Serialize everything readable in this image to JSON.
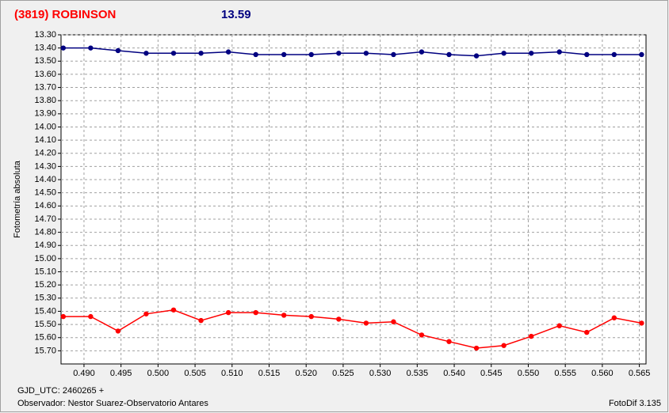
{
  "chart_data": {
    "type": "line",
    "title": "(3819) ROBINSON",
    "subtitle": "13.59",
    "y_label": "Fotometría absoluta",
    "footer_left": "GJD_UTC: 2460265 +",
    "observer": "Observador: Nestor Suarez-Observatorio Antares",
    "software": "FotoDif 3.135",
    "title_color": "#ff0000",
    "subtitle_color": "#000080",
    "grid": true,
    "y_inverted": true,
    "xlim": [
      0.4869,
      0.5659
    ],
    "ylim": [
      13.3,
      15.8
    ],
    "xticks": [
      {
        "value": 0.49,
        "label": "0.490"
      },
      0.495,
      {
        "value": 0.5,
        "label": "0.500"
      },
      0.505,
      {
        "value": 0.51,
        "label": "0.510"
      },
      0.515,
      {
        "value": 0.52,
        "label": "0.520"
      },
      0.525,
      {
        "value": 0.53,
        "label": "0.530"
      },
      0.535,
      {
        "value": 0.54,
        "label": "0.540"
      },
      0.545,
      {
        "value": 0.55,
        "label": "0.550"
      },
      0.555,
      {
        "value": 0.56,
        "label": "0.560"
      },
      0.565
    ],
    "yticks": [
      {
        "value": 13.3,
        "label": "13.30"
      },
      {
        "value": 13.4,
        "label": "13.40"
      },
      {
        "value": 13.5,
        "label": "13.50"
      },
      {
        "value": 13.6,
        "label": "13.60"
      },
      {
        "value": 13.7,
        "label": "13.70"
      },
      {
        "value": 13.8,
        "label": "13.80"
      },
      {
        "value": 13.9,
        "label": "13.90"
      },
      {
        "value": 14.0,
        "label": "14.00"
      },
      {
        "value": 14.1,
        "label": "14.10"
      },
      {
        "value": 14.2,
        "label": "14.20"
      },
      {
        "value": 14.3,
        "label": "14.30"
      },
      {
        "value": 14.4,
        "label": "14.40"
      },
      {
        "value": 14.5,
        "label": "14.50"
      },
      {
        "value": 14.6,
        "label": "14.60"
      },
      {
        "value": 14.7,
        "label": "14.70"
      },
      {
        "value": 14.8,
        "label": "14.80"
      },
      {
        "value": 14.9,
        "label": "14.90"
      },
      {
        "value": 15.0,
        "label": "15.00"
      },
      {
        "value": 15.1,
        "label": "15.10"
      },
      {
        "value": 15.2,
        "label": "15.20"
      },
      {
        "value": 15.3,
        "label": "15.30"
      },
      {
        "value": 15.4,
        "label": "15.40"
      },
      {
        "value": 15.5,
        "label": "15.50"
      },
      {
        "value": 15.6,
        "label": "15.60"
      },
      {
        "value": 15.7,
        "label": "15.70"
      }
    ],
    "x": [
      0.4872,
      0.4909,
      0.4946,
      0.4984,
      0.5021,
      0.5058,
      0.5095,
      0.5132,
      0.517,
      0.5207,
      0.5244,
      0.5281,
      0.5318,
      0.5356,
      0.5393,
      0.543,
      0.5467,
      0.5504,
      0.5542,
      0.5579,
      0.5616,
      0.5653
    ],
    "series": [
      {
        "color": "#000080",
        "values": [
          13.4,
          13.4,
          13.42,
          13.44,
          13.44,
          13.44,
          13.43,
          13.45,
          13.45,
          13.45,
          13.44,
          13.44,
          13.45,
          13.43,
          13.45,
          13.46,
          13.44,
          13.44,
          13.43,
          13.45,
          13.45,
          13.45
        ]
      },
      {
        "color": "#ff0000",
        "values": [
          15.44,
          15.44,
          15.55,
          15.42,
          15.39,
          15.47,
          15.41,
          15.41,
          15.43,
          15.44,
          15.46,
          15.49,
          15.48,
          15.58,
          15.63,
          15.68,
          15.66,
          15.59,
          15.51,
          15.56,
          15.45,
          15.49
        ]
      }
    ]
  }
}
